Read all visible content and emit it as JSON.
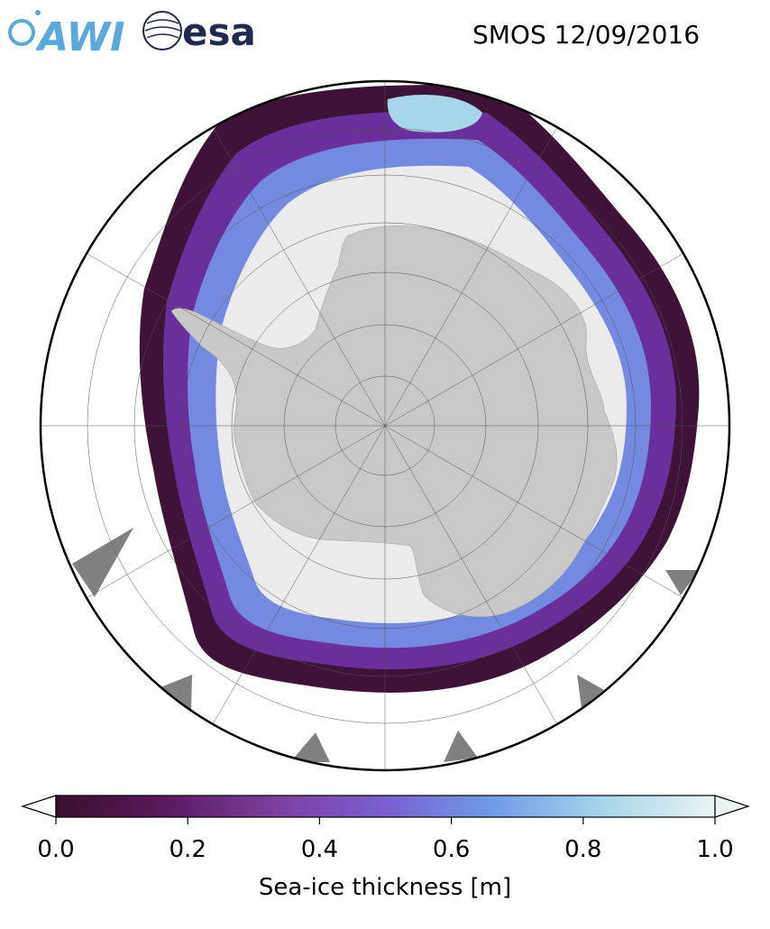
{
  "header": {
    "awi_logo_text": "AWI",
    "esa_logo_text": "esa",
    "title": "SMOS 12/09/2016"
  },
  "map": {
    "projection": "south-polar-stereographic",
    "land_color": "#c8c8c8",
    "ocean_color": "#ffffff",
    "missing_color": "#808080",
    "thick_ice_color": "#ebebeb",
    "graticule": "on"
  },
  "colorbar": {
    "label": "Sea-ice thickness [m]",
    "min": 0.0,
    "max": 1.0,
    "ticks": [
      "0.0",
      "0.2",
      "0.4",
      "0.6",
      "0.8",
      "1.0"
    ],
    "tick_values": [
      0.0,
      0.2,
      0.4,
      0.6,
      0.8,
      1.0
    ],
    "colormap_stops": [
      "#3b0f2d",
      "#5a1a5e",
      "#7d3fa0",
      "#7a5fd0",
      "#6f9de8",
      "#a7d6ea",
      "#eaf3f3"
    ],
    "extend": "both"
  }
}
